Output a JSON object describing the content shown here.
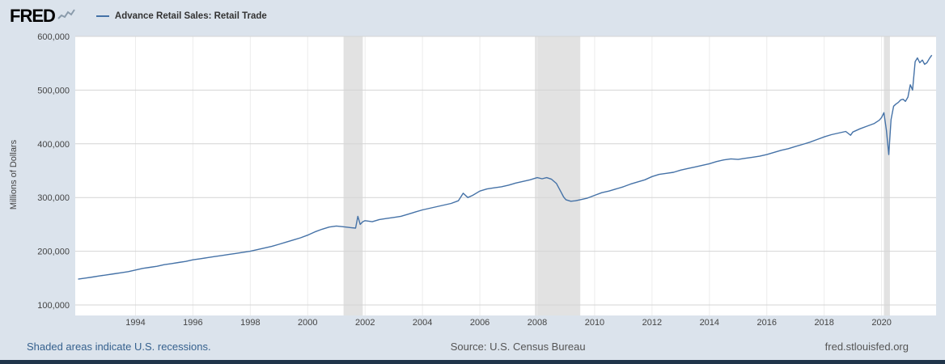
{
  "header": {
    "logo": "FRED",
    "legend_label": "Advance Retail Sales: Retail Trade"
  },
  "footer": {
    "recession_note": "Shaded areas indicate U.S. recessions.",
    "source": "Source: U.S. Census Bureau",
    "site": "fred.stlouisfed.org"
  },
  "colors": {
    "line": "#4572a7",
    "recession_band": "#e2e2e2",
    "grid_h": "#d4d4d4",
    "grid_v": "#ececec",
    "plot_bg": "#ffffff",
    "page_bg": "#dbe3ec",
    "link_blue": "#36618e"
  },
  "chart_data": {
    "type": "line",
    "title": "Advance Retail Sales: Retail Trade",
    "xlabel": "",
    "ylabel": "Millions of Dollars",
    "xlim": [
      1991.9,
      2021.9
    ],
    "ylim": [
      100000,
      600000
    ],
    "yticks": [
      100000,
      200000,
      300000,
      400000,
      500000,
      600000
    ],
    "ytick_labels": [
      "100,000",
      "200,000",
      "300,000",
      "400,000",
      "500,000",
      "600,000"
    ],
    "xticks": [
      1994,
      1996,
      1998,
      2000,
      2002,
      2004,
      2006,
      2008,
      2010,
      2012,
      2014,
      2016,
      2018,
      2020
    ],
    "xtick_labels": [
      "1994",
      "1996",
      "1998",
      "2000",
      "2002",
      "2004",
      "2006",
      "2008",
      "2010",
      "2012",
      "2014",
      "2016",
      "2018",
      "2020"
    ],
    "grid": true,
    "legend_position": "top-left",
    "recessions": [
      [
        2001.25,
        2001.92
      ],
      [
        2007.92,
        2009.5
      ],
      [
        2020.08,
        2020.29
      ]
    ],
    "series": [
      {
        "name": "Advance Retail Sales: Retail Trade",
        "color": "#4572a7",
        "points": [
          [
            1992.0,
            148000
          ],
          [
            1992.25,
            150000
          ],
          [
            1992.5,
            152000
          ],
          [
            1992.75,
            154000
          ],
          [
            1993.0,
            156000
          ],
          [
            1993.25,
            158000
          ],
          [
            1993.5,
            160000
          ],
          [
            1993.75,
            162000
          ],
          [
            1994.0,
            165000
          ],
          [
            1994.25,
            168000
          ],
          [
            1994.5,
            170000
          ],
          [
            1994.75,
            172000
          ],
          [
            1995.0,
            175000
          ],
          [
            1995.25,
            177000
          ],
          [
            1995.5,
            179000
          ],
          [
            1995.75,
            181000
          ],
          [
            1996.0,
            184000
          ],
          [
            1996.25,
            186000
          ],
          [
            1996.5,
            188000
          ],
          [
            1996.75,
            190000
          ],
          [
            1997.0,
            192000
          ],
          [
            1997.25,
            194000
          ],
          [
            1997.5,
            196000
          ],
          [
            1997.75,
            198000
          ],
          [
            1998.0,
            200000
          ],
          [
            1998.25,
            203000
          ],
          [
            1998.5,
            206000
          ],
          [
            1998.75,
            209000
          ],
          [
            1999.0,
            213000
          ],
          [
            1999.25,
            217000
          ],
          [
            1999.5,
            221000
          ],
          [
            1999.75,
            225000
          ],
          [
            2000.0,
            230000
          ],
          [
            2000.25,
            236000
          ],
          [
            2000.5,
            241000
          ],
          [
            2000.75,
            245000
          ],
          [
            2001.0,
            247000
          ],
          [
            2001.17,
            246000
          ],
          [
            2001.33,
            245000
          ],
          [
            2001.5,
            244000
          ],
          [
            2001.67,
            243000
          ],
          [
            2001.75,
            265000
          ],
          [
            2001.83,
            250000
          ],
          [
            2001.92,
            255000
          ],
          [
            2002.0,
            257000
          ],
          [
            2002.25,
            255000
          ],
          [
            2002.5,
            259000
          ],
          [
            2002.75,
            261000
          ],
          [
            2003.0,
            263000
          ],
          [
            2003.25,
            265000
          ],
          [
            2003.5,
            269000
          ],
          [
            2003.75,
            273000
          ],
          [
            2004.0,
            277000
          ],
          [
            2004.25,
            280000
          ],
          [
            2004.5,
            283000
          ],
          [
            2004.75,
            286000
          ],
          [
            2005.0,
            289000
          ],
          [
            2005.25,
            294000
          ],
          [
            2005.42,
            308000
          ],
          [
            2005.58,
            300000
          ],
          [
            2005.75,
            304000
          ],
          [
            2006.0,
            312000
          ],
          [
            2006.25,
            316000
          ],
          [
            2006.5,
            318000
          ],
          [
            2006.75,
            320000
          ],
          [
            2007.0,
            323000
          ],
          [
            2007.25,
            327000
          ],
          [
            2007.5,
            330000
          ],
          [
            2007.75,
            333000
          ],
          [
            2008.0,
            337000
          ],
          [
            2008.17,
            335000
          ],
          [
            2008.33,
            337000
          ],
          [
            2008.5,
            334000
          ],
          [
            2008.67,
            326000
          ],
          [
            2008.83,
            310000
          ],
          [
            2008.92,
            301000
          ],
          [
            2009.0,
            296000
          ],
          [
            2009.17,
            293000
          ],
          [
            2009.33,
            294000
          ],
          [
            2009.5,
            296000
          ],
          [
            2009.75,
            299000
          ],
          [
            2010.0,
            304000
          ],
          [
            2010.25,
            309000
          ],
          [
            2010.5,
            312000
          ],
          [
            2010.75,
            316000
          ],
          [
            2011.0,
            320000
          ],
          [
            2011.25,
            325000
          ],
          [
            2011.5,
            329000
          ],
          [
            2011.75,
            333000
          ],
          [
            2012.0,
            339000
          ],
          [
            2012.25,
            343000
          ],
          [
            2012.5,
            345000
          ],
          [
            2012.75,
            347000
          ],
          [
            2013.0,
            351000
          ],
          [
            2013.25,
            354000
          ],
          [
            2013.5,
            357000
          ],
          [
            2013.75,
            360000
          ],
          [
            2014.0,
            363000
          ],
          [
            2014.25,
            367000
          ],
          [
            2014.5,
            370000
          ],
          [
            2014.75,
            372000
          ],
          [
            2015.0,
            371000
          ],
          [
            2015.25,
            373000
          ],
          [
            2015.5,
            375000
          ],
          [
            2015.75,
            377000
          ],
          [
            2016.0,
            380000
          ],
          [
            2016.25,
            384000
          ],
          [
            2016.5,
            388000
          ],
          [
            2016.75,
            391000
          ],
          [
            2017.0,
            395000
          ],
          [
            2017.25,
            399000
          ],
          [
            2017.5,
            403000
          ],
          [
            2017.75,
            408000
          ],
          [
            2018.0,
            413000
          ],
          [
            2018.25,
            417000
          ],
          [
            2018.5,
            420000
          ],
          [
            2018.75,
            423000
          ],
          [
            2018.92,
            416000
          ],
          [
            2019.0,
            422000
          ],
          [
            2019.25,
            428000
          ],
          [
            2019.5,
            433000
          ],
          [
            2019.75,
            438000
          ],
          [
            2019.92,
            444000
          ],
          [
            2020.0,
            449000
          ],
          [
            2020.08,
            458000
          ],
          [
            2020.17,
            425000
          ],
          [
            2020.25,
            380000
          ],
          [
            2020.33,
            445000
          ],
          [
            2020.42,
            470000
          ],
          [
            2020.5,
            474000
          ],
          [
            2020.58,
            477000
          ],
          [
            2020.67,
            482000
          ],
          [
            2020.75,
            483000
          ],
          [
            2020.83,
            479000
          ],
          [
            2020.92,
            487000
          ],
          [
            2021.0,
            510000
          ],
          [
            2021.08,
            500000
          ],
          [
            2021.17,
            553000
          ],
          [
            2021.25,
            560000
          ],
          [
            2021.33,
            551000
          ],
          [
            2021.42,
            556000
          ],
          [
            2021.5,
            548000
          ],
          [
            2021.58,
            551000
          ],
          [
            2021.67,
            559000
          ],
          [
            2021.75,
            565000
          ]
        ]
      }
    ]
  }
}
